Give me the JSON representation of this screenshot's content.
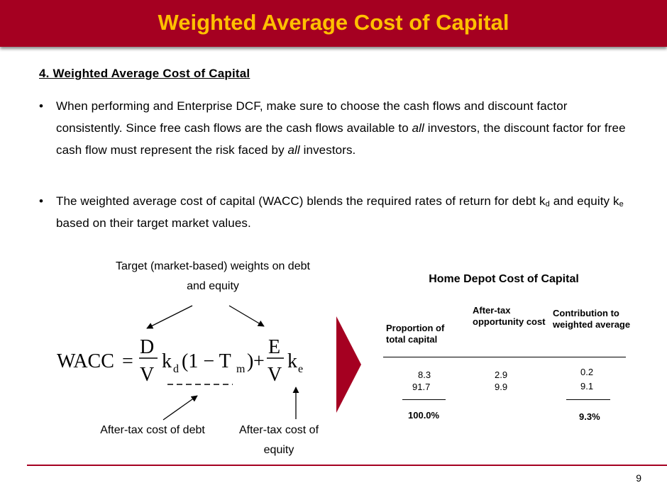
{
  "header": {
    "title": "Weighted Average Cost of Capital"
  },
  "section_heading": "4.  Weighted Average Cost of Capital",
  "bullets": [
    {
      "part1": "When performing and Enterprise DCF, make sure to choose the cash flows and discount factor consistently.  Since free cash flows are the cash flows available to ",
      "em1": "all",
      "part2": " investors, the discount factor for free cash flow must represent the risk faced by ",
      "em2": "all",
      "part3": " investors."
    },
    {
      "part1": "The weighted average cost of capital (WACC) blends the required rates of return for debt k",
      "sub1": "d",
      "part2": " and equity k",
      "sub2": "e",
      "part3": " based on their target market values."
    }
  ],
  "diagram": {
    "weights_caption": "Target (market-based) weights on debt and equity",
    "formula": {
      "lhs": "WACC",
      "equals": "=",
      "d": "D",
      "v": "V",
      "kd": "k",
      "kd_sub": "d",
      "one_minus": "(1 − T",
      "tm_sub": "m",
      "close": ")",
      "plus": "+",
      "e": "E",
      "ke": "k",
      "ke_sub": "e"
    },
    "caption_debt": "After-tax cost of debt",
    "caption_equity": "After-tax cost of equity"
  },
  "table": {
    "title": "Home Depot Cost of Capital",
    "columns": [
      {
        "header": "Proportion of total capital",
        "values": [
          "8.3",
          "91.7"
        ],
        "total": "100.0%"
      },
      {
        "header": "After-tax opportunity cost",
        "values": [
          "2.9",
          "9.9"
        ],
        "total": ""
      },
      {
        "header": "Contribution to weighted average",
        "values": [
          "0.2",
          "9.1"
        ],
        "total": "9.3%"
      }
    ]
  },
  "footer": {
    "page_number": "9"
  },
  "colors": {
    "brand": "#a50021",
    "title_text": "#ffc000"
  }
}
